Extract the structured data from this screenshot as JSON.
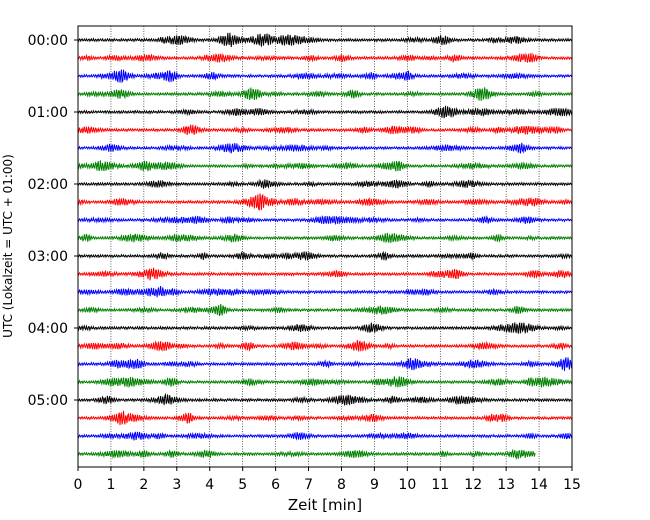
{
  "chart_data": {
    "type": "line",
    "title": "",
    "xlabel": "Zeit  [min]",
    "ylabel": "UTC (Lokalzeit = UTC + 01:00)",
    "xlim": [
      0,
      15
    ],
    "x_ticks": [
      "0",
      "1",
      "2",
      "3",
      "4",
      "5",
      "6",
      "7",
      "8",
      "9",
      "10",
      "11",
      "12",
      "13",
      "14",
      "15"
    ],
    "y_tick_labels": [
      "00:00",
      "01:00",
      "02:00",
      "03:00",
      "04:00",
      "05:00"
    ],
    "y_tick_rows": [
      0,
      4,
      8,
      12,
      16,
      20
    ],
    "grid": "vertical-dotted",
    "legend": "none",
    "row_count": 24,
    "last_row_end_min": 13.9,
    "colors": [
      "#000000",
      "#ff0000",
      "#0000ff",
      "#008000"
    ]
  }
}
